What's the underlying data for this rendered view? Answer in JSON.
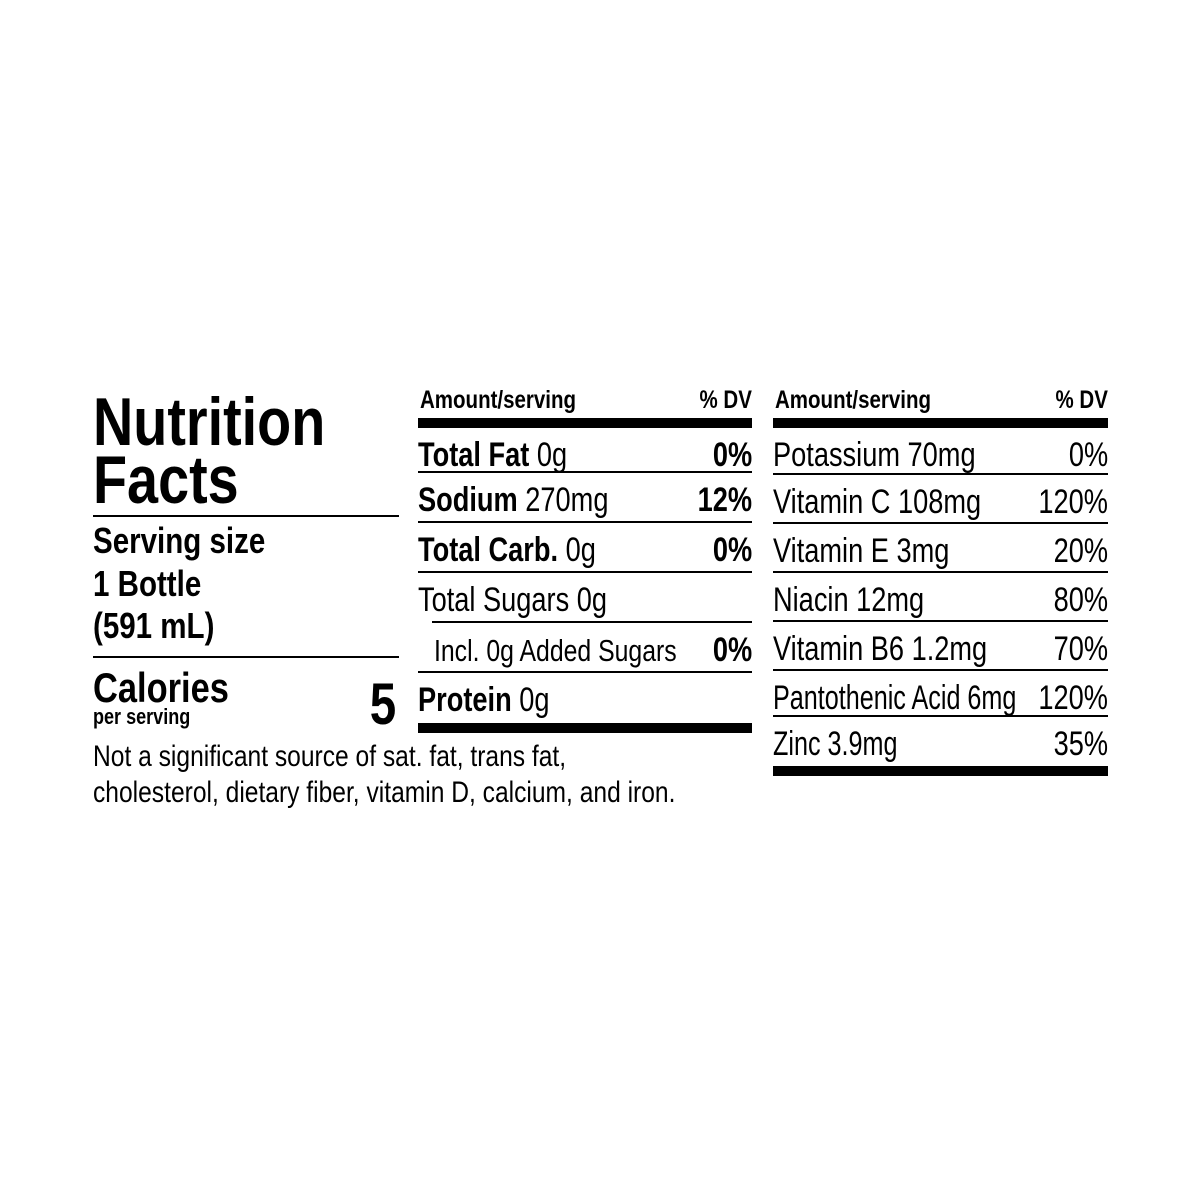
{
  "label": {
    "title_line1": "Nutrition",
    "title_line2": "Facts",
    "serving_size_label": "Serving size",
    "serving_size_line1": "1 Bottle",
    "serving_size_line2": "(591 mL)",
    "calories_label": "Calories",
    "calories_sub": "per serving",
    "calories_value": "5",
    "footnote_line1": "Not a significant source of sat. fat, trans fat,",
    "footnote_line2": "cholesterol, dietary fiber, vitamin D, calcium, and iron."
  },
  "macros": {
    "header_amount": "Amount/serving",
    "header_dv": "% DV",
    "rows": [
      {
        "name": "Total Fat",
        "amount": "0g",
        "dv": "0%"
      },
      {
        "name": "Sodium",
        "amount": "270mg",
        "dv": "12%"
      },
      {
        "name": "Total Carb.",
        "amount": "0g",
        "dv": "0%"
      },
      {
        "name": "Total Sugars 0g",
        "amount": "",
        "dv": ""
      },
      {
        "name": "Incl. 0g Added Sugars",
        "amount": "",
        "dv": "0%"
      },
      {
        "name": "Protein",
        "amount": "0g",
        "dv": ""
      }
    ]
  },
  "micros": {
    "header_amount": "Amount/serving",
    "header_dv": "% DV",
    "rows": [
      {
        "name": "Potassium 70mg",
        "dv": "0%"
      },
      {
        "name": "Vitamin C 108mg",
        "dv": "120%"
      },
      {
        "name": "Vitamin E 3mg",
        "dv": "20%"
      },
      {
        "name": "Niacin 12mg",
        "dv": "80%"
      },
      {
        "name": "Vitamin B6 1.2mg",
        "dv": "70%"
      },
      {
        "name": "Pantothenic Acid 6mg",
        "dv": "120%"
      },
      {
        "name": "Zinc 3.9mg",
        "dv": "35%"
      }
    ]
  }
}
